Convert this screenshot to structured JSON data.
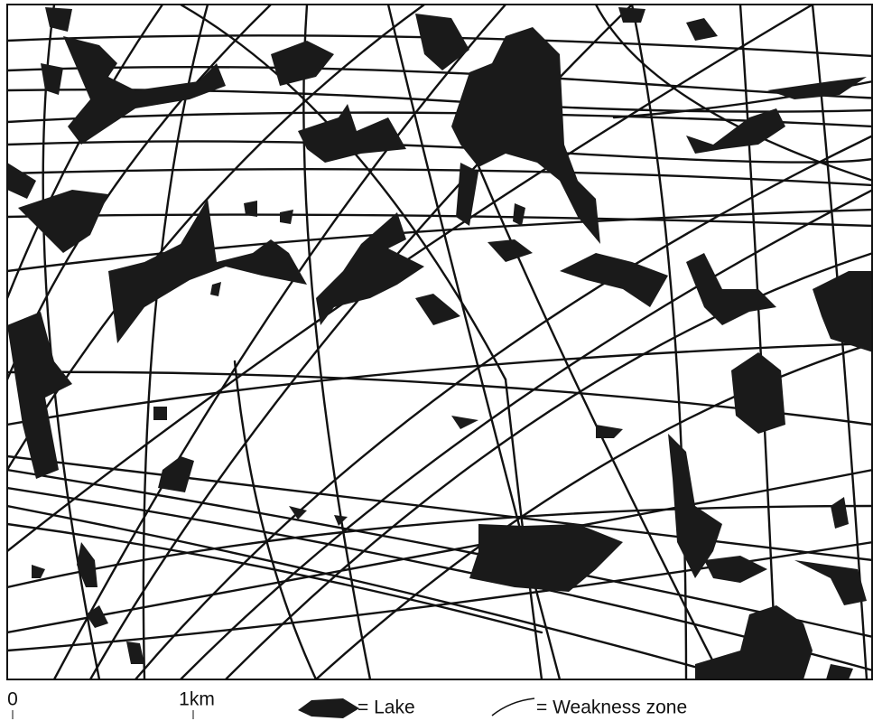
{
  "map": {
    "scale_bar": {
      "start": "0",
      "end": "1km"
    },
    "legend": [
      {
        "label": "= Lake"
      },
      {
        "label": "= Weakness zone"
      }
    ]
  }
}
